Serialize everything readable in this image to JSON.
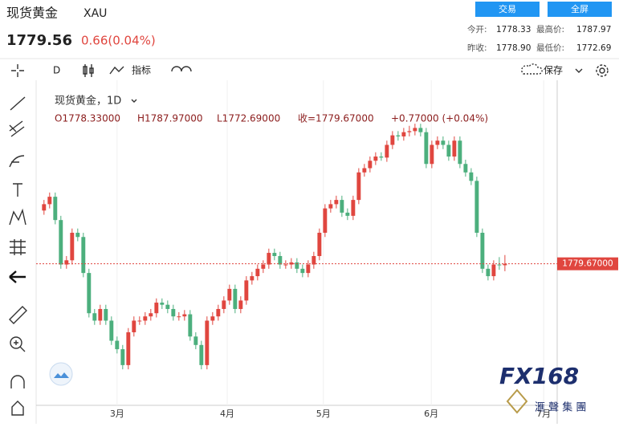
{
  "header": {
    "name": "现货黄金",
    "symbol": "XAU",
    "price": "1779.56",
    "change": "0.66(0.04%)",
    "buttons": [
      "交易",
      "全屏"
    ],
    "stats": [
      [
        "今开:",
        "1778.33",
        "最高价:",
        "1787.97"
      ],
      [
        "昨收:",
        "1778.90",
        "最低价:",
        "1772.69"
      ]
    ]
  },
  "toolbar": {
    "interval": "D",
    "indicators": "指标",
    "save": "保存"
  },
  "legend": {
    "title": "现货黄金，1D",
    "open": "O1778.33000",
    "high": "H1787.97000",
    "low": "L1772.69000",
    "close": "收=1779.67000",
    "change": "+0.77000 (+0.04%)"
  },
  "watermark": {
    "logo": "FX168",
    "sub": "滙 聲 集 團"
  },
  "chart_data": {
    "type": "candlestick",
    "up_color": "#e0463f",
    "down_color": "#4caf7d",
    "price_label": "1779.67000",
    "ylim": [
      1646,
      1950
    ],
    "xlim": [
      -1.4,
      91.3
    ],
    "xticks": [
      {
        "value": 13,
        "label": "3月"
      },
      {
        "value": 32.6,
        "label": "4月"
      },
      {
        "value": 49.7,
        "label": "5月"
      },
      {
        "value": 68.9,
        "label": "6月"
      },
      {
        "value": 88.9,
        "label": "7月"
      }
    ],
    "candles": [
      [
        1830,
        1840,
        1826,
        1836
      ],
      [
        1836,
        1847,
        1832,
        1843
      ],
      [
        1843,
        1847,
        1817,
        1821
      ],
      [
        1821,
        1825,
        1775,
        1779
      ],
      [
        1779,
        1787,
        1775,
        1783
      ],
      [
        1783,
        1813,
        1779,
        1809
      ],
      [
        1809,
        1813,
        1801,
        1805
      ],
      [
        1805,
        1809,
        1767,
        1771
      ],
      [
        1771,
        1775,
        1729,
        1733
      ],
      [
        1733,
        1737,
        1722,
        1726
      ],
      [
        1726,
        1741,
        1722,
        1737
      ],
      [
        1737,
        1741,
        1722,
        1726
      ],
      [
        1726,
        1730,
        1703,
        1707
      ],
      [
        1707,
        1711,
        1695,
        1699
      ],
      [
        1699,
        1703,
        1680,
        1684
      ],
      [
        1684,
        1719,
        1680,
        1715
      ],
      [
        1715,
        1730,
        1711,
        1726
      ],
      [
        1726,
        1730,
        1722,
        1726
      ],
      [
        1726,
        1734,
        1722,
        1730
      ],
      [
        1730,
        1737,
        1726,
        1733
      ],
      [
        1733,
        1747,
        1729,
        1743
      ],
      [
        1743,
        1747,
        1737,
        1741
      ],
      [
        1741,
        1745,
        1733,
        1737
      ],
      [
        1737,
        1741,
        1726,
        1730
      ],
      [
        1730,
        1734,
        1726,
        1730
      ],
      [
        1730,
        1736,
        1726,
        1732
      ],
      [
        1732,
        1736,
        1707,
        1711
      ],
      [
        1711,
        1715,
        1699,
        1703
      ],
      [
        1703,
        1707,
        1680,
        1684
      ],
      [
        1684,
        1730,
        1680,
        1726
      ],
      [
        1726,
        1734,
        1722,
        1730
      ],
      [
        1730,
        1741,
        1726,
        1737
      ],
      [
        1737,
        1749,
        1733,
        1745
      ],
      [
        1745,
        1760,
        1741,
        1756
      ],
      [
        1756,
        1760,
        1733,
        1737
      ],
      [
        1737,
        1749,
        1733,
        1745
      ],
      [
        1745,
        1768,
        1741,
        1764
      ],
      [
        1764,
        1772,
        1760,
        1768
      ],
      [
        1768,
        1779,
        1764,
        1775
      ],
      [
        1775,
        1783,
        1771,
        1779
      ],
      [
        1779,
        1794,
        1775,
        1790
      ],
      [
        1790,
        1794,
        1783,
        1787
      ],
      [
        1787,
        1791,
        1775,
        1779
      ],
      [
        1779,
        1783,
        1775,
        1779
      ],
      [
        1779,
        1785,
        1775,
        1781
      ],
      [
        1781,
        1785,
        1771,
        1775
      ],
      [
        1775,
        1779,
        1767,
        1771
      ],
      [
        1771,
        1783,
        1767,
        1779
      ],
      [
        1779,
        1791,
        1775,
        1787
      ],
      [
        1787,
        1813,
        1783,
        1809
      ],
      [
        1809,
        1836,
        1805,
        1832
      ],
      [
        1832,
        1840,
        1828,
        1836
      ],
      [
        1836,
        1844,
        1832,
        1840
      ],
      [
        1840,
        1844,
        1824,
        1828
      ],
      [
        1828,
        1832,
        1821,
        1825
      ],
      [
        1825,
        1844,
        1821,
        1840
      ],
      [
        1840,
        1870,
        1836,
        1866
      ],
      [
        1866,
        1874,
        1862,
        1870
      ],
      [
        1870,
        1881,
        1866,
        1877
      ],
      [
        1877,
        1885,
        1873,
        1881
      ],
      [
        1881,
        1885,
        1877,
        1880
      ],
      [
        1880,
        1896,
        1876,
        1892
      ],
      [
        1892,
        1905,
        1888,
        1901
      ],
      [
        1901,
        1905,
        1896,
        1900
      ],
      [
        1900,
        1908,
        1896,
        1904
      ],
      [
        1904,
        1910,
        1900,
        1905
      ],
      [
        1905,
        1912,
        1901,
        1908
      ],
      [
        1908,
        1912,
        1900,
        1904
      ],
      [
        1904,
        1908,
        1870,
        1874
      ],
      [
        1874,
        1896,
        1870,
        1892
      ],
      [
        1892,
        1900,
        1888,
        1896
      ],
      [
        1896,
        1900,
        1888,
        1892
      ],
      [
        1892,
        1896,
        1877,
        1881
      ],
      [
        1881,
        1900,
        1877,
        1896
      ],
      [
        1896,
        1900,
        1870,
        1874
      ],
      [
        1874,
        1878,
        1862,
        1866
      ],
      [
        1866,
        1870,
        1854,
        1858
      ],
      [
        1858,
        1862,
        1805,
        1809
      ],
      [
        1809,
        1813,
        1771,
        1775
      ],
      [
        1775,
        1779,
        1764,
        1768
      ],
      [
        1768,
        1783,
        1764,
        1779
      ],
      [
        1779,
        1786,
        1774,
        1778.33
      ],
      [
        1778.33,
        1787.97,
        1772.69,
        1779.67
      ]
    ]
  }
}
